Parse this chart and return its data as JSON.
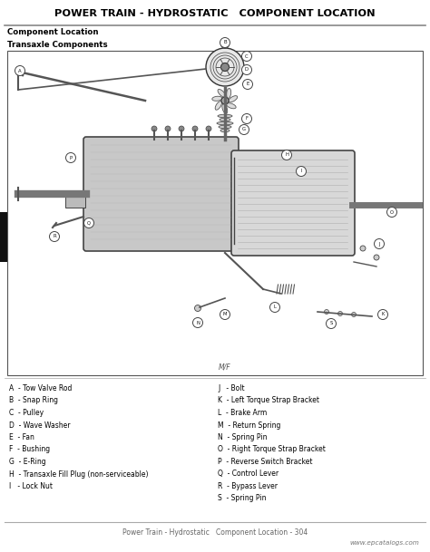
{
  "title": "POWER TRAIN - HYDROSTATIC   COMPONENT LOCATION",
  "section_label": "Component Location",
  "subsection_label": "Transaxle Components",
  "mif_label": "M/F",
  "left_legend": [
    "A  - Tow Valve Rod",
    "B  - Snap Ring",
    "C  - Pulley",
    "D  - Wave Washer",
    "E  - Fan",
    "F  - Bushing",
    "G  - E-Ring",
    "H  - Transaxle Fill Plug (non-serviceable)",
    "I   - Lock Nut"
  ],
  "right_legend": [
    "J   - Bolt",
    "K  - Left Torque Strap Bracket",
    "L  - Brake Arm",
    "M  - Return Spring",
    "N  - Spring Pin",
    "O  - Right Torque Strap Bracket",
    "P  - Reverse Switch Bracket",
    "Q  - Control Lever",
    "R  - Bypass Lever",
    "S  - Spring Pin"
  ],
  "footer": "Power Train - Hydrostatic   Component Location - 304",
  "watermark": "www.epcatalogs.com",
  "bg_color": "#ffffff",
  "title_color": "#000000",
  "border_color": "#555555",
  "figsize": [
    4.74,
    6.09
  ],
  "dpi": 100
}
